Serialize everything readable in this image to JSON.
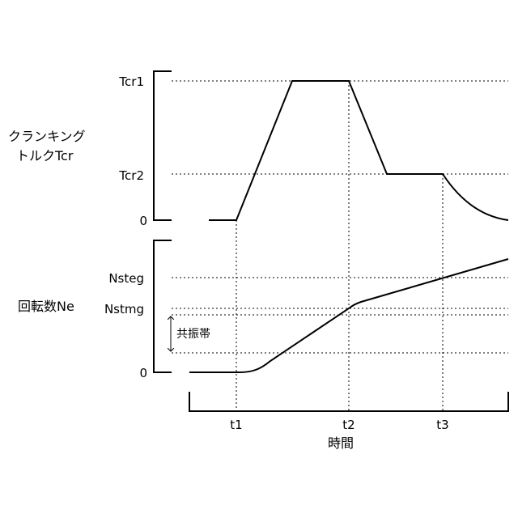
{
  "upper_panel": {
    "ylabel_line1": "クランキング",
    "ylabel_line2": "トルクTcr",
    "levels": {
      "tcr1": "Tcr1",
      "tcr2": "Tcr2",
      "zero": "0"
    }
  },
  "lower_panel": {
    "ylabel": "回転数Ne",
    "levels": {
      "nsteg": "Nsteg",
      "nstmg": "Nstmg",
      "zero": "0"
    },
    "band_label": "共振帯"
  },
  "time_axis": {
    "ticks": [
      "t1",
      "t2",
      "t3"
    ],
    "label": "時間"
  },
  "chart_data": [
    {
      "type": "line",
      "ylabel": "クランキングトルクTcr",
      "x_marks": [
        "t1",
        "t2",
        "t3"
      ],
      "y_levels": [
        "0",
        "Tcr2",
        "Tcr1"
      ],
      "series": [
        {
          "points": [
            {
              "x": "start",
              "y": "0"
            },
            {
              "x": "t1",
              "y": "0"
            },
            {
              "x": "between t1 and t2",
              "y": "Tcr1"
            },
            {
              "x": "t2",
              "y": "Tcr1"
            },
            {
              "x": "between t2 and t3",
              "y": "Tcr2"
            },
            {
              "x": "t3",
              "y": "Tcr2"
            },
            {
              "x": "end",
              "y": "0"
            }
          ]
        }
      ]
    },
    {
      "type": "line",
      "ylabel": "回転数Ne",
      "xlabel": "時間",
      "x_marks": [
        "t1",
        "t2",
        "t3"
      ],
      "y_levels": [
        "0",
        "Nstmg",
        "Nsteg"
      ],
      "annotations": [
        "共振帯"
      ],
      "series": [
        {
          "points": [
            {
              "x": "start",
              "y": "0"
            },
            {
              "x": "t1",
              "y": "0"
            },
            {
              "x": "t2",
              "y": "Nstmg"
            },
            {
              "x": "t3",
              "y": "Nsteg"
            }
          ]
        }
      ]
    }
  ]
}
